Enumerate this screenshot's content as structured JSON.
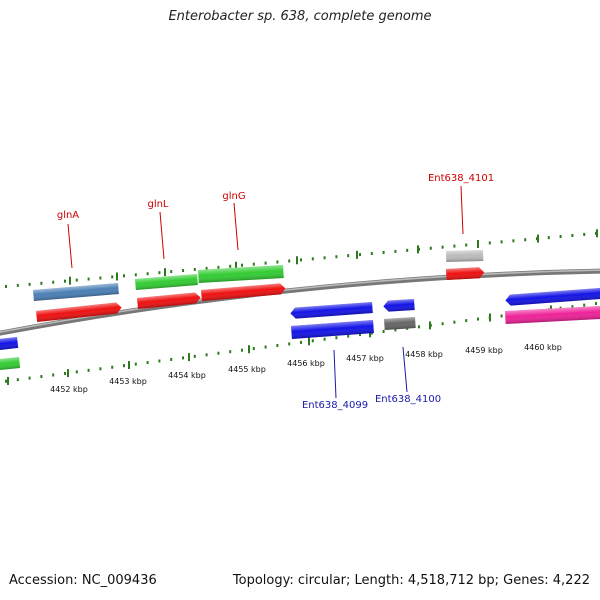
{
  "title": "Enterobacter sp. 638, complete genome",
  "footer": {
    "accession": "Accession: NC_009436",
    "summary": "Topology: circular; Length: 4,518,712 bp; Genes: 4,222"
  },
  "scale_labels": [
    "4452 kbp",
    "4453 kbp",
    "4454 kbp",
    "4455 kbp",
    "4456 kbp",
    "4457 kbp",
    "4458 kbp",
    "4459 kbp",
    "4460 kbp"
  ],
  "gene_labels": {
    "top": [
      "glnA",
      "glnL",
      "glnG",
      "Ent638_4101"
    ],
    "bottom": [
      "Ent638_4099",
      "Ent638_4100"
    ]
  },
  "colors": {
    "label_top": "#cc0000",
    "label_bottom": "#1a1aaa",
    "tick": "#2d7a1e",
    "backbone": "#8a8a8a",
    "cds": "#ee1111",
    "gene_steel": "#4a7fb5",
    "gene_green": "#33cc33",
    "gene_blue": "#1414e6",
    "gene_grey": "#666666",
    "gene_lightgrey": "#bbbbbb",
    "gene_pink": "#ee2299"
  }
}
